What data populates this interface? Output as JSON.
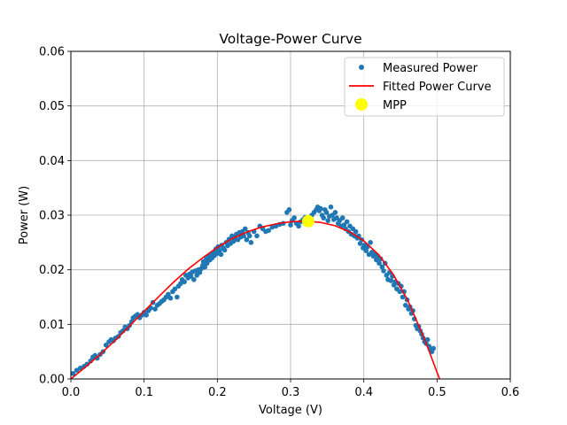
{
  "chart_data": {
    "type": "scatter",
    "title": "Voltage-Power Curve",
    "xlabel": "Voltage (V)",
    "ylabel": "Power (W)",
    "xlim": [
      0.0,
      0.6
    ],
    "ylim": [
      0.0,
      0.06
    ],
    "x_ticks": [
      "0.0",
      "0.1",
      "0.2",
      "0.3",
      "0.4",
      "0.5",
      "0.6"
    ],
    "y_ticks": [
      "0.00",
      "0.01",
      "0.02",
      "0.03",
      "0.04",
      "0.05",
      "0.06"
    ],
    "grid": true,
    "legend_position": "top-right",
    "series": [
      {
        "name": "Measured Power",
        "kind": "scatter",
        "color": "#1f77b4",
        "points": [
          [
            0.003,
            0.001
          ],
          [
            0.008,
            0.0016
          ],
          [
            0.013,
            0.002
          ],
          [
            0.018,
            0.0023
          ],
          [
            0.022,
            0.0027
          ],
          [
            0.027,
            0.0033
          ],
          [
            0.03,
            0.004
          ],
          [
            0.033,
            0.0043
          ],
          [
            0.036,
            0.0038
          ],
          [
            0.04,
            0.0045
          ],
          [
            0.044,
            0.005
          ],
          [
            0.048,
            0.0062
          ],
          [
            0.052,
            0.0068
          ],
          [
            0.055,
            0.0072
          ],
          [
            0.058,
            0.007
          ],
          [
            0.061,
            0.0075
          ],
          [
            0.065,
            0.0078
          ],
          [
            0.068,
            0.0085
          ],
          [
            0.071,
            0.0088
          ],
          [
            0.074,
            0.0095
          ],
          [
            0.077,
            0.0092
          ],
          [
            0.08,
            0.0098
          ],
          [
            0.083,
            0.0105
          ],
          [
            0.085,
            0.0112
          ],
          [
            0.088,
            0.0115
          ],
          [
            0.091,
            0.0118
          ],
          [
            0.094,
            0.0112
          ],
          [
            0.097,
            0.0117
          ],
          [
            0.1,
            0.0122
          ],
          [
            0.103,
            0.0117
          ],
          [
            0.106,
            0.0125
          ],
          [
            0.109,
            0.013
          ],
          [
            0.112,
            0.014
          ],
          [
            0.115,
            0.0128
          ],
          [
            0.118,
            0.0135
          ],
          [
            0.121,
            0.0138
          ],
          [
            0.124,
            0.0142
          ],
          [
            0.127,
            0.0145
          ],
          [
            0.13,
            0.015
          ],
          [
            0.133,
            0.0155
          ],
          [
            0.136,
            0.0148
          ],
          [
            0.139,
            0.016
          ],
          [
            0.142,
            0.0165
          ],
          [
            0.145,
            0.015
          ],
          [
            0.147,
            0.017
          ],
          [
            0.15,
            0.0175
          ],
          [
            0.152,
            0.0182
          ],
          [
            0.155,
            0.0178
          ],
          [
            0.157,
            0.019
          ],
          [
            0.16,
            0.0185
          ],
          [
            0.162,
            0.0192
          ],
          [
            0.164,
            0.0188
          ],
          [
            0.166,
            0.0196
          ],
          [
            0.168,
            0.0182
          ],
          [
            0.17,
            0.0198
          ],
          [
            0.172,
            0.019
          ],
          [
            0.174,
            0.02
          ],
          [
            0.176,
            0.0195
          ],
          [
            0.178,
            0.0202
          ],
          [
            0.18,
            0.0208
          ],
          [
            0.181,
            0.0215
          ],
          [
            0.183,
            0.0205
          ],
          [
            0.185,
            0.022
          ],
          [
            0.186,
            0.0212
          ],
          [
            0.188,
            0.0225
          ],
          [
            0.19,
            0.0218
          ],
          [
            0.191,
            0.0228
          ],
          [
            0.193,
            0.0222
          ],
          [
            0.195,
            0.0232
          ],
          [
            0.196,
            0.0226
          ],
          [
            0.198,
            0.0238
          ],
          [
            0.2,
            0.023
          ],
          [
            0.201,
            0.0242
          ],
          [
            0.203,
            0.0235
          ],
          [
            0.205,
            0.0228
          ],
          [
            0.206,
            0.0245
          ],
          [
            0.208,
            0.024
          ],
          [
            0.21,
            0.0236
          ],
          [
            0.212,
            0.025
          ],
          [
            0.214,
            0.0244
          ],
          [
            0.216,
            0.0256
          ],
          [
            0.218,
            0.0248
          ],
          [
            0.22,
            0.0262
          ],
          [
            0.222,
            0.0252
          ],
          [
            0.224,
            0.0258
          ],
          [
            0.226,
            0.0265
          ],
          [
            0.228,
            0.0255
          ],
          [
            0.23,
            0.0268
          ],
          [
            0.232,
            0.026
          ],
          [
            0.234,
            0.027
          ],
          [
            0.236,
            0.0262
          ],
          [
            0.238,
            0.0275
          ],
          [
            0.24,
            0.0255
          ],
          [
            0.242,
            0.0268
          ],
          [
            0.244,
            0.0262
          ],
          [
            0.246,
            0.025
          ],
          [
            0.25,
            0.027
          ],
          [
            0.254,
            0.0262
          ],
          [
            0.258,
            0.028
          ],
          [
            0.262,
            0.0275
          ],
          [
            0.266,
            0.027
          ],
          [
            0.27,
            0.0272
          ],
          [
            0.275,
            0.0278
          ],
          [
            0.28,
            0.028
          ],
          [
            0.285,
            0.0283
          ],
          [
            0.29,
            0.0285
          ],
          [
            0.295,
            0.0305
          ],
          [
            0.298,
            0.031
          ],
          [
            0.3,
            0.0282
          ],
          [
            0.302,
            0.029
          ],
          [
            0.305,
            0.0295
          ],
          [
            0.308,
            0.0285
          ],
          [
            0.311,
            0.028
          ],
          [
            0.314,
            0.0288
          ],
          [
            0.317,
            0.0292
          ],
          [
            0.32,
            0.0296
          ],
          [
            0.323,
            0.0285
          ],
          [
            0.326,
            0.029
          ],
          [
            0.329,
            0.03
          ],
          [
            0.332,
            0.0305
          ],
          [
            0.335,
            0.031
          ],
          [
            0.337,
            0.0315
          ],
          [
            0.339,
            0.0308
          ],
          [
            0.341,
            0.0312
          ],
          [
            0.343,
            0.03
          ],
          [
            0.345,
            0.0295
          ],
          [
            0.347,
            0.031
          ],
          [
            0.349,
            0.0305
          ],
          [
            0.351,
            0.029
          ],
          [
            0.353,
            0.0298
          ],
          [
            0.355,
            0.0315
          ],
          [
            0.357,
            0.03
          ],
          [
            0.359,
            0.0292
          ],
          [
            0.361,
            0.0305
          ],
          [
            0.363,
            0.0295
          ],
          [
            0.365,
            0.0285
          ],
          [
            0.367,
            0.029
          ],
          [
            0.369,
            0.028
          ],
          [
            0.371,
            0.0295
          ],
          [
            0.373,
            0.0282
          ],
          [
            0.375,
            0.0275
          ],
          [
            0.377,
            0.0288
          ],
          [
            0.379,
            0.027
          ],
          [
            0.381,
            0.028
          ],
          [
            0.383,
            0.0265
          ],
          [
            0.385,
            0.0275
          ],
          [
            0.387,
            0.0262
          ],
          [
            0.389,
            0.027
          ],
          [
            0.391,
            0.0258
          ],
          [
            0.393,
            0.0262
          ],
          [
            0.395,
            0.0248
          ],
          [
            0.397,
            0.0255
          ],
          [
            0.399,
            0.024
          ],
          [
            0.401,
            0.0245
          ],
          [
            0.403,
            0.0235
          ],
          [
            0.405,
            0.0242
          ],
          [
            0.407,
            0.0228
          ],
          [
            0.409,
            0.025
          ],
          [
            0.411,
            0.0232
          ],
          [
            0.413,
            0.0225
          ],
          [
            0.415,
            0.0228
          ],
          [
            0.417,
            0.0218
          ],
          [
            0.419,
            0.0225
          ],
          [
            0.421,
            0.0212
          ],
          [
            0.423,
            0.022
          ],
          [
            0.425,
            0.0205
          ],
          [
            0.427,
            0.0198
          ],
          [
            0.429,
            0.0212
          ],
          [
            0.431,
            0.019
          ],
          [
            0.433,
            0.0182
          ],
          [
            0.435,
            0.0195
          ],
          [
            0.437,
            0.018
          ],
          [
            0.439,
            0.0188
          ],
          [
            0.441,
            0.0172
          ],
          [
            0.443,
            0.0178
          ],
          [
            0.445,
            0.0165
          ],
          [
            0.447,
            0.0175
          ],
          [
            0.449,
            0.016
          ],
          [
            0.451,
            0.017
          ],
          [
            0.453,
            0.015
          ],
          [
            0.455,
            0.016
          ],
          [
            0.457,
            0.0135
          ],
          [
            0.459,
            0.0145
          ],
          [
            0.461,
            0.0128
          ],
          [
            0.463,
            0.0132
          ],
          [
            0.465,
            0.012
          ],
          [
            0.467,
            0.0125
          ],
          [
            0.469,
            0.011
          ],
          [
            0.471,
            0.0098
          ],
          [
            0.473,
            0.0092
          ],
          [
            0.475,
            0.0096
          ],
          [
            0.477,
            0.0088
          ],
          [
            0.479,
            0.0082
          ],
          [
            0.481,
            0.0075
          ],
          [
            0.483,
            0.0068
          ],
          [
            0.485,
            0.0065
          ],
          [
            0.487,
            0.0072
          ],
          [
            0.489,
            0.006
          ],
          [
            0.491,
            0.0055
          ],
          [
            0.493,
            0.005
          ],
          [
            0.495,
            0.0056
          ]
        ]
      },
      {
        "name": "Fitted Power Curve",
        "kind": "line",
        "color": "#ff0000",
        "points": [
          [
            0.0,
            0.0
          ],
          [
            0.02,
            0.0022
          ],
          [
            0.04,
            0.0045
          ],
          [
            0.06,
            0.007
          ],
          [
            0.08,
            0.0097
          ],
          [
            0.1,
            0.0124
          ],
          [
            0.12,
            0.0151
          ],
          [
            0.14,
            0.0177
          ],
          [
            0.16,
            0.0201
          ],
          [
            0.18,
            0.0222
          ],
          [
            0.2,
            0.0241
          ],
          [
            0.22,
            0.0257
          ],
          [
            0.24,
            0.0269
          ],
          [
            0.26,
            0.0278
          ],
          [
            0.28,
            0.0284
          ],
          [
            0.3,
            0.0288
          ],
          [
            0.32,
            0.0289
          ],
          [
            0.34,
            0.0287
          ],
          [
            0.36,
            0.0281
          ],
          [
            0.38,
            0.027
          ],
          [
            0.4,
            0.0253
          ],
          [
            0.42,
            0.0228
          ],
          [
            0.44,
            0.0192
          ],
          [
            0.46,
            0.0144
          ],
          [
            0.48,
            0.0082
          ],
          [
            0.49,
            0.0048
          ],
          [
            0.5,
            0.0012
          ],
          [
            0.505,
            -0.0005
          ]
        ]
      },
      {
        "name": "MPP",
        "kind": "marker",
        "color": "#ffff00",
        "points": [
          [
            0.324,
            0.0289
          ]
        ]
      }
    ]
  }
}
